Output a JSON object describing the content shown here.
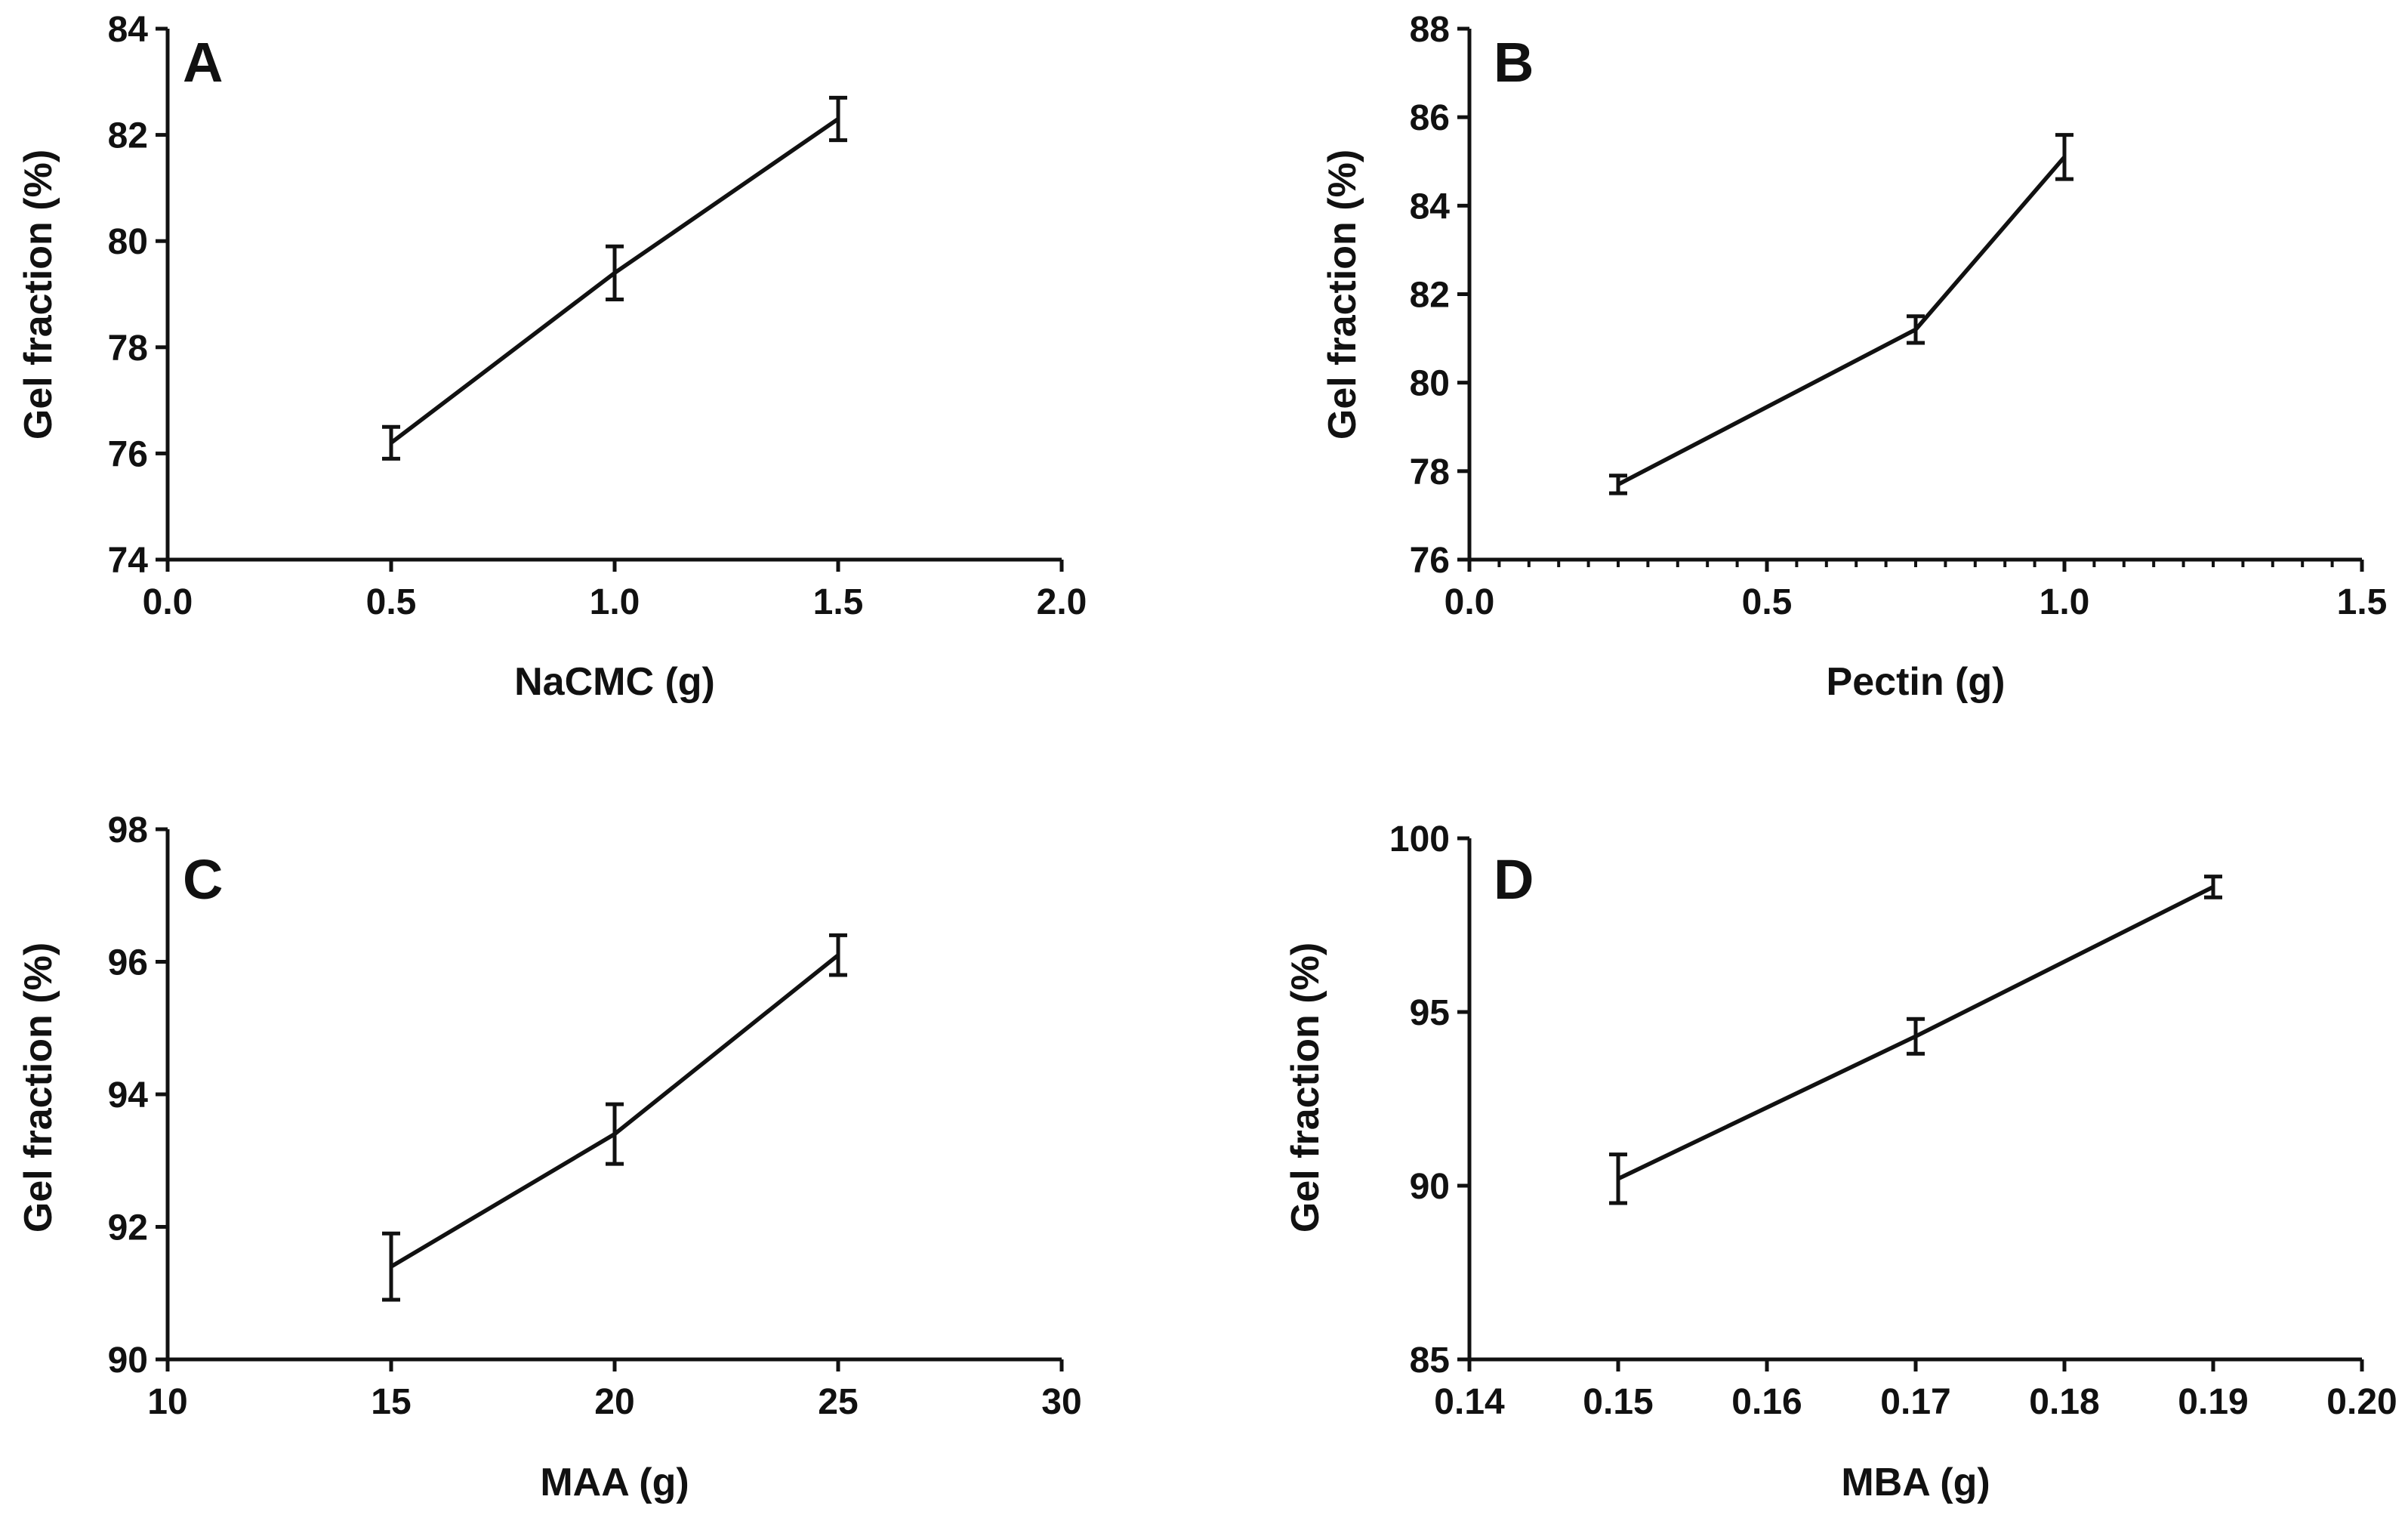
{
  "chart_data": [
    {
      "type": "line",
      "panel": "A",
      "xlabel": "NaCMC (g)",
      "ylabel": "Gel fraction (%)",
      "xlim": [
        0,
        2.0
      ],
      "ylim": [
        74,
        84
      ],
      "xticks": [
        0,
        0.5,
        1.0,
        1.5,
        2.0
      ],
      "xtick_labels": [
        "0.0",
        "0.5",
        "1.0",
        "1.5",
        "2.0"
      ],
      "yticks": [
        74,
        76,
        78,
        80,
        82,
        84
      ],
      "ytick_labels": [
        "74",
        "76",
        "78",
        "80",
        "82",
        "84"
      ],
      "x_minor_ticks": false,
      "x": [
        0.5,
        1.0,
        1.5
      ],
      "values": [
        76.2,
        79.4,
        82.3
      ],
      "errors": [
        0.3,
        0.5,
        0.4
      ]
    },
    {
      "type": "line",
      "panel": "B",
      "xlabel": "Pectin (g)",
      "ylabel": "Gel fraction (%)",
      "xlim": [
        0,
        1.5
      ],
      "ylim": [
        76,
        88
      ],
      "xticks": [
        0,
        0.5,
        1.0,
        1.5
      ],
      "xtick_labels": [
        "0.0",
        "0.5",
        "1.0",
        "1.5"
      ],
      "yticks": [
        76,
        78,
        80,
        82,
        84,
        86,
        88
      ],
      "ytick_labels": [
        "76",
        "78",
        "80",
        "82",
        "84",
        "86",
        "88"
      ],
      "x_minor_ticks": true,
      "x": [
        0.25,
        0.75,
        1.0
      ],
      "values": [
        77.7,
        81.2,
        85.1
      ],
      "errors": [
        0.2,
        0.3,
        0.5
      ]
    },
    {
      "type": "line",
      "panel": "C",
      "xlabel": "MAA (g)",
      "ylabel": "Gel fraction (%)",
      "xlim": [
        10,
        30
      ],
      "ylim": [
        90,
        98
      ],
      "xticks": [
        10,
        15,
        20,
        25,
        30
      ],
      "xtick_labels": [
        "10",
        "15",
        "20",
        "25",
        "30"
      ],
      "yticks": [
        90,
        92,
        94,
        96,
        98
      ],
      "ytick_labels": [
        "90",
        "92",
        "94",
        "96",
        "98"
      ],
      "x_minor_ticks": false,
      "x": [
        15,
        20,
        25
      ],
      "values": [
        91.4,
        93.4,
        96.1
      ],
      "errors": [
        0.5,
        0.45,
        0.3
      ]
    },
    {
      "type": "line",
      "panel": "D",
      "xlabel": "MBA (g)",
      "ylabel": "Gel fraction (%)",
      "xlim": [
        0.14,
        0.2
      ],
      "ylim": [
        85,
        100
      ],
      "xticks": [
        0.14,
        0.15,
        0.16,
        0.17,
        0.18,
        0.19,
        0.2
      ],
      "xtick_labels": [
        "0.14",
        "0.15",
        "0.16",
        "0.17",
        "0.18",
        "0.19",
        "0.20"
      ],
      "yticks": [
        85,
        90,
        95,
        100
      ],
      "ytick_labels": [
        "85",
        "90",
        "95",
        "100"
      ],
      "x_minor_ticks": false,
      "x": [
        0.15,
        0.17,
        0.19
      ],
      "values": [
        90.2,
        94.3,
        98.6
      ],
      "errors": [
        0.7,
        0.5,
        0.3
      ]
    }
  ]
}
